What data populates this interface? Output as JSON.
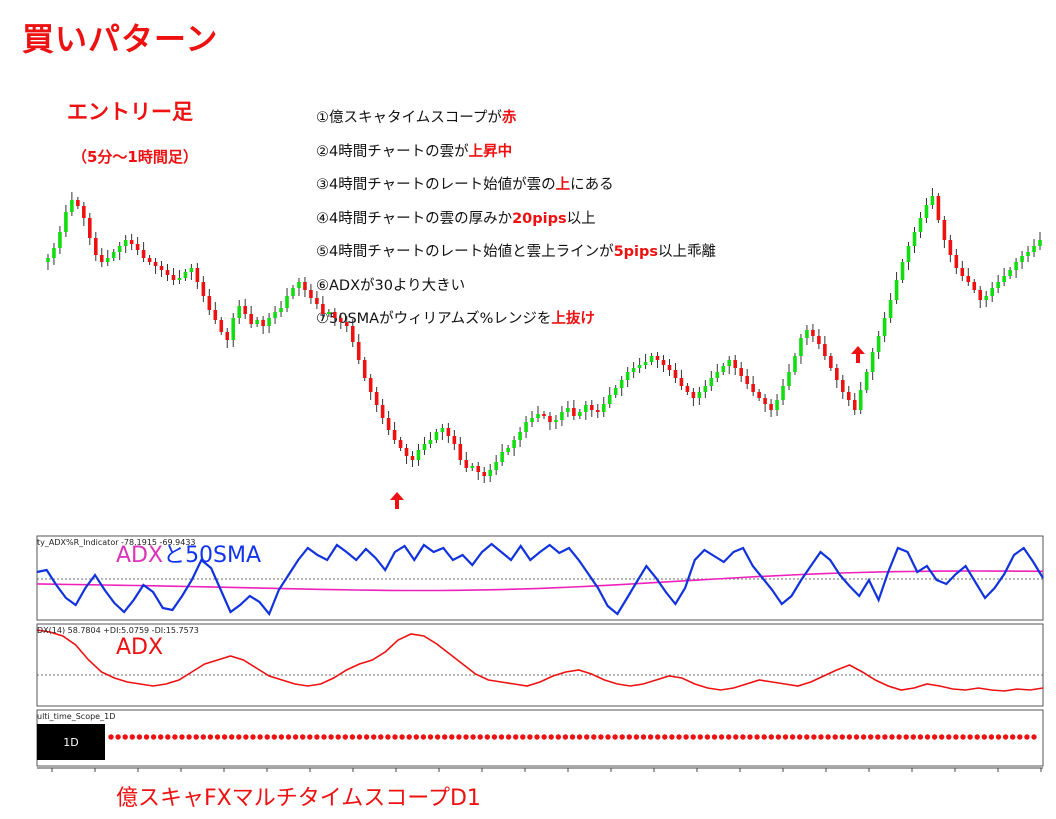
{
  "page_title": "買いパターン",
  "entry": {
    "title": "エントリー足",
    "sub": "（5分～1時間足）"
  },
  "conditions": [
    {
      "pre": "①億スキャタイムスコープが",
      "hl": "赤",
      "post": ""
    },
    {
      "pre": "②4時間チャートの雲が",
      "hl": "上昇中",
      "post": ""
    },
    {
      "pre": "③4時間チャートのレート始値が雲の",
      "hl": "上",
      "post": "にある"
    },
    {
      "pre": "④4時間チャートの雲の厚みか",
      "hl": "20pips",
      "post": "以上"
    },
    {
      "pre": "⑤4時間チャートのレート始値と雲上ラインが",
      "hl": "5pips",
      "post": "以上乖離"
    },
    {
      "pre": "⑥ADXが30より大きい",
      "hl": "",
      "post": ""
    },
    {
      "pre": "⑦50SMAがウィリアムズ%レンジを",
      "hl": "上抜け",
      "post": ""
    }
  ],
  "labels": {
    "adx50_a": "ADX",
    "adx50_b": "と50SMA",
    "adx": "ADX",
    "scope": "億スキャFXマルチタイムスコープD1"
  },
  "indicator_captions": {
    "williams": "ty_ADX%R_Indicator -78.1915 -69.9433",
    "adx": "DX(14) 58.7804 +DI:5.0759 -DI:15.7573",
    "scope": "ulti_time_Scope_1D"
  },
  "scope_box_label": "1D",
  "colors": {
    "bull": "#11dd11",
    "bear": "#ee1111",
    "title_red": "#ee1111",
    "williams_line": "#1133dd",
    "sma_line": "#ee22bb",
    "adx_line": "#ee1111",
    "dots": "#ee1111"
  },
  "chart_data": {
    "type": "candlestick",
    "note_markers": [
      "up-arrow at first entry",
      "up-arrow at second entry"
    ],
    "price_closes": [
      262,
      258,
      248,
      232,
      212,
      200,
      206,
      218,
      238,
      255,
      262,
      258,
      252,
      246,
      240,
      244,
      250,
      258,
      262,
      266,
      270,
      275,
      280,
      278,
      272,
      268,
      282,
      296,
      310,
      320,
      332,
      340,
      318,
      306,
      314,
      324,
      320,
      326,
      318,
      312,
      308,
      296,
      288,
      282,
      290,
      298,
      304,
      314,
      312,
      318,
      322,
      326,
      342,
      360,
      378,
      392,
      405,
      418,
      430,
      440,
      448,
      456,
      460,
      450,
      444,
      440,
      432,
      428,
      436,
      444,
      460,
      468,
      466,
      472,
      476,
      470,
      462,
      452,
      448,
      440,
      432,
      422,
      418,
      414,
      416,
      422,
      420,
      412,
      408,
      416,
      412,
      405,
      410,
      412,
      404,
      395,
      388,
      380,
      372,
      368,
      365,
      362,
      356,
      360,
      365,
      370,
      378,
      386,
      392,
      398,
      392,
      386,
      378,
      372,
      366,
      360,
      368,
      376,
      384,
      392,
      398,
      404,
      410,
      400,
      386,
      372,
      356,
      338,
      330,
      336,
      344,
      356,
      368,
      380,
      392,
      400,
      410,
      390,
      372,
      352,
      336,
      318,
      300,
      280,
      262,
      246,
      232,
      218,
      205,
      196,
      220,
      240,
      255,
      268,
      276,
      282,
      290,
      300,
      296,
      288,
      282,
      276,
      270,
      262,
      256,
      252,
      246,
      240
    ]
  }
}
